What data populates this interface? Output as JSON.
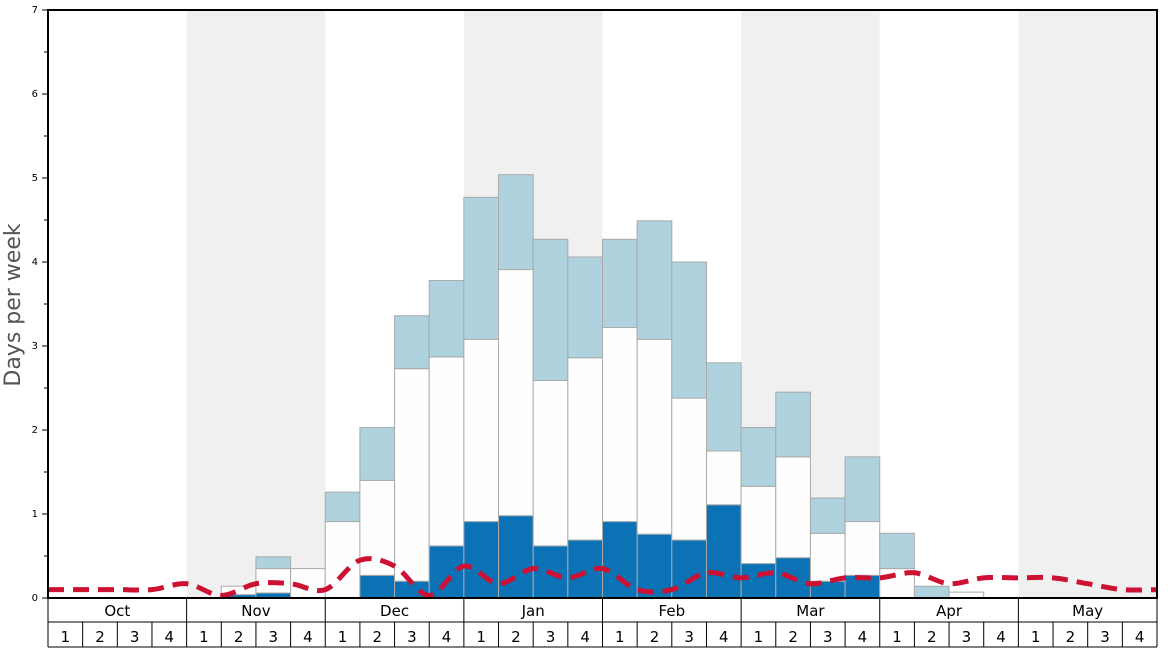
{
  "chart_data": {
    "type": "bar",
    "ylabel": "Days per week",
    "ylim": [
      0,
      7
    ],
    "yticks": [
      "0",
      "1",
      "2",
      "3",
      "4",
      "5",
      "6",
      "7"
    ],
    "months": [
      "Oct",
      "Nov",
      "Dec",
      "Jan",
      "Feb",
      "Mar",
      "Apr",
      "May"
    ],
    "weeks_per_month": [
      "1",
      "2",
      "3",
      "4"
    ],
    "stacked": true,
    "grid": false,
    "shaded_months": [
      "Nov",
      "Jan",
      "Mar",
      "May"
    ],
    "colors": {
      "bottom": "#0a72b5",
      "middle": "#fefefe",
      "top": "#aed3df",
      "line": "#cc1133",
      "shade": "#f0f0f0",
      "bar_border": "#aaaaaa"
    },
    "series": [
      {
        "key": "bottom",
        "values": [
          0,
          0,
          0,
          0,
          0,
          0.04,
          0.06,
          0,
          0,
          0.27,
          0.2,
          0.62,
          0.91,
          0.98,
          0.62,
          0.69,
          0.91,
          0.76,
          0.69,
          1.11,
          0.41,
          0.48,
          0.2,
          0.27,
          0,
          0,
          0,
          0,
          0,
          0,
          0,
          0
        ]
      },
      {
        "key": "middle",
        "values": [
          0,
          0,
          0,
          0,
          0,
          0.1,
          0.29,
          0.35,
          0.91,
          1.13,
          2.53,
          2.25,
          2.17,
          2.93,
          1.97,
          2.17,
          2.31,
          2.32,
          1.69,
          0.64,
          0.92,
          1.2,
          0.57,
          0.64,
          0.35,
          0,
          0.07,
          0,
          0,
          0,
          0,
          0
        ]
      },
      {
        "key": "top",
        "values": [
          0,
          0,
          0,
          0,
          0,
          0,
          0.14,
          0,
          0.35,
          0.63,
          0.63,
          0.91,
          1.69,
          1.13,
          1.68,
          1.2,
          1.05,
          1.41,
          1.62,
          1.05,
          0.7,
          0.77,
          0.42,
          0.77,
          0.42,
          0.14,
          0,
          0,
          0,
          0,
          0,
          0
        ]
      }
    ],
    "line": [
      0.1,
      0.1,
      0.1,
      0.1,
      0.17,
      0.03,
      0.17,
      0.17,
      0.1,
      0.45,
      0.38,
      0.03,
      0.38,
      0.17,
      0.35,
      0.24,
      0.35,
      0.1,
      0.1,
      0.3,
      0.24,
      0.3,
      0.17,
      0.24,
      0.24,
      0.3,
      0.17,
      0.24,
      0.24,
      0.24,
      0.17,
      0.1,
      0.1
    ]
  }
}
